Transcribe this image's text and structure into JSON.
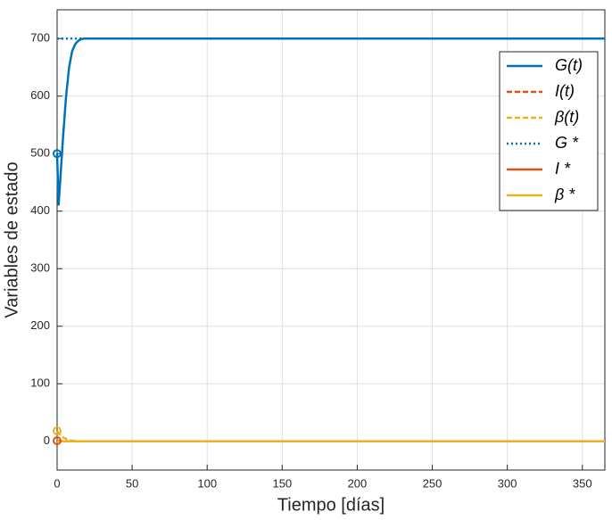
{
  "chart_data": {
    "type": "line",
    "xlabel": "Tiempo [días]",
    "ylabel": "Variables de estado",
    "xlim": [
      0,
      365
    ],
    "ylim": [
      -50,
      750
    ],
    "xticks": [
      0,
      50,
      100,
      150,
      200,
      250,
      300,
      350
    ],
    "yticks": [
      0,
      100,
      200,
      300,
      400,
      500,
      600,
      700
    ],
    "grid": true,
    "legend_position": "upper-right",
    "series": [
      {
        "name": "G(t)",
        "color": "#0072BD",
        "dash": "solid",
        "start_marker": true,
        "x": [
          0,
          1,
          2,
          4,
          6,
          8,
          10,
          12,
          14,
          16,
          18,
          20,
          365
        ],
        "values": [
          500,
          410,
          450,
          530,
          600,
          650,
          678,
          690,
          696,
          699,
          700,
          700,
          700
        ]
      },
      {
        "name": "I(t)",
        "color": "#D95319",
        "dash": "dashed",
        "start_marker": true,
        "x": [
          0,
          2,
          4,
          6,
          10,
          365
        ],
        "values": [
          1,
          0.5,
          0.2,
          0.1,
          0,
          0
        ]
      },
      {
        "name": "β(t)",
        "color": "#EDB120",
        "dash": "dashed",
        "start_marker": true,
        "x": [
          0,
          2,
          4,
          6,
          8,
          10,
          15,
          365
        ],
        "values": [
          18,
          12,
          7,
          4,
          2,
          1,
          0,
          0
        ]
      },
      {
        "name": "G *",
        "color": "#0072BD",
        "dash": "dotted",
        "start_marker": false,
        "x": [
          0,
          365
        ],
        "values": [
          700,
          700
        ]
      },
      {
        "name": "I *",
        "color": "#D95319",
        "dash": "solid",
        "start_marker": false,
        "x": [
          0,
          365
        ],
        "values": [
          0,
          0
        ]
      },
      {
        "name": "β *",
        "color": "#EDB120",
        "dash": "solid",
        "start_marker": false,
        "x": [
          0,
          365
        ],
        "values": [
          0,
          0
        ]
      }
    ]
  }
}
